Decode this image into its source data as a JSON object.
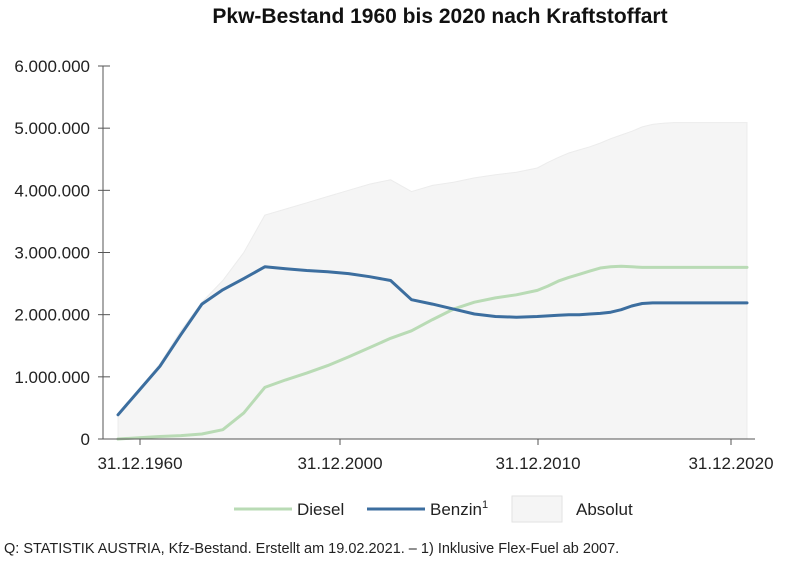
{
  "chart_data": {
    "type": "line",
    "title": "Pkw-Bestand 1960 bis 2020 nach Kraftstoffart",
    "xlabel": "",
    "ylabel": "",
    "x": [
      1960,
      1962,
      1964,
      1966,
      1968,
      1970,
      1972,
      1974,
      1976,
      1978,
      1980,
      1982,
      1984,
      1986,
      1988,
      1990,
      1992,
      1994,
      1996,
      1998,
      2000,
      2001,
      2002,
      2003,
      2004,
      2005,
      2006,
      2007,
      2008,
      2009,
      2010,
      2011,
      2012,
      2013,
      2014,
      2015,
      2016,
      2017,
      2018,
      2019,
      2020
    ],
    "x_tick_labels": [
      "31.12.1960",
      "31.12.2000",
      "31.12.2010",
      "31.12.2020"
    ],
    "x_tick_values": [
      1960,
      2000,
      2010,
      2020
    ],
    "ylim": [
      0,
      6000000
    ],
    "y_ticks": [
      0,
      1000000,
      2000000,
      3000000,
      4000000,
      5000000,
      6000000
    ],
    "y_tick_labels": [
      "0",
      "1.000.000",
      "2.000.000",
      "3.000.000",
      "4.000.000",
      "5.000.000",
      "6.000.000"
    ],
    "series": [
      {
        "name": "Diesel",
        "color": "#b9dbb5",
        "kind": "line",
        "values": [
          0,
          20000,
          40000,
          55000,
          80000,
          150000,
          420000,
          830000,
          950000,
          1060000,
          1180000,
          1320000,
          1470000,
          1620000,
          1740000,
          1920000,
          2090000,
          2200000,
          2270000,
          2320000,
          2390000,
          2460000,
          2540000,
          2600000,
          2650000,
          2700000,
          2750000,
          2770000,
          2780000,
          2770000,
          2760000,
          2760000,
          2760000,
          2760000,
          2760000,
          2760000,
          2760000,
          2760000,
          2760000,
          2760000,
          2760000
        ]
      },
      {
        "name": "Benzin",
        "name_sup": "1",
        "color": "#3c6e9f",
        "kind": "line",
        "values": [
          390000,
          780000,
          1170000,
          1680000,
          2170000,
          2400000,
          2580000,
          2770000,
          2740000,
          2710000,
          2690000,
          2660000,
          2610000,
          2550000,
          2240000,
          2170000,
          2090000,
          2010000,
          1970000,
          1960000,
          1970000,
          1980000,
          1990000,
          2000000,
          2000000,
          2010000,
          2020000,
          2040000,
          2080000,
          2140000,
          2180000,
          2190000,
          2190000,
          2190000,
          2190000,
          2190000,
          2190000,
          2190000,
          2190000,
          2190000,
          2190000
        ]
      },
      {
        "name": "Absolut",
        "color": "#f5f5f5",
        "kind": "area",
        "values": [
          390000,
          800000,
          1210000,
          1740000,
          2200000,
          2550000,
          3000000,
          3600000,
          3700000,
          3800000,
          3900000,
          4000000,
          4100000,
          4170000,
          3980000,
          4080000,
          4130000,
          4200000,
          4250000,
          4290000,
          4360000,
          4450000,
          4530000,
          4600000,
          4650000,
          4700000,
          4760000,
          4830000,
          4890000,
          4950000,
          5020000,
          5060000,
          5080000,
          5090000,
          5090000,
          5090000,
          5090000,
          5090000,
          5090000,
          5090000,
          5090000
        ]
      }
    ],
    "legend_position": "bottom",
    "grid": false
  },
  "source": "Q: STATISTIK AUSTRIA, Kfz-Bestand. Erstellt am 19.02.2021. – 1) Inklusive Flex-Fuel ab 2007."
}
